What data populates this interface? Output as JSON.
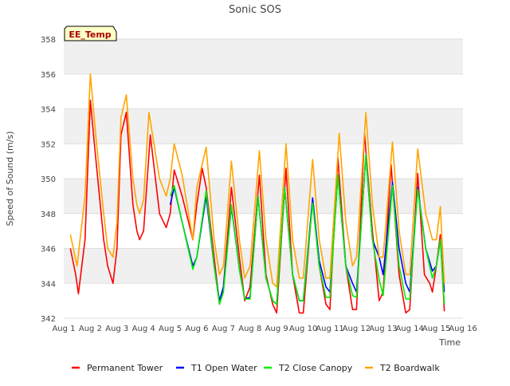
{
  "chart_data": {
    "type": "line",
    "title": "Sonic SOS",
    "xlabel": "Time",
    "ylabel": "Speed of Sound (m/s)",
    "badge": "EE_Temp",
    "xlim": [
      1,
      16
    ],
    "ylim": [
      342,
      358
    ],
    "x_ticks": [
      {
        "v": 1,
        "label": "Aug 1"
      },
      {
        "v": 2,
        "label": "Aug 2"
      },
      {
        "v": 3,
        "label": "Aug 3"
      },
      {
        "v": 4,
        "label": "Aug 4"
      },
      {
        "v": 5,
        "label": "Aug 5"
      },
      {
        "v": 6,
        "label": "Aug 6"
      },
      {
        "v": 7,
        "label": "Aug 7"
      },
      {
        "v": 8,
        "label": "Aug 8"
      },
      {
        "v": 9,
        "label": "Aug 9"
      },
      {
        "v": 10,
        "label": "Aug 10"
      },
      {
        "v": 11,
        "label": "Aug 11"
      },
      {
        "v": 12,
        "label": "Aug 12"
      },
      {
        "v": 13,
        "label": "Aug 13"
      },
      {
        "v": 14,
        "label": "Aug 14"
      },
      {
        "v": 15,
        "label": "Aug 15"
      },
      {
        "v": 16,
        "label": "Aug 16"
      }
    ],
    "y_ticks": [
      342,
      344,
      346,
      348,
      350,
      352,
      354,
      356,
      358
    ],
    "grid": true,
    "legend_position": "bottom",
    "series": [
      {
        "name": "Permanent Tower",
        "color": "#ff0000",
        "x": [
          1.25,
          1.45,
          1.55,
          1.8,
          2.0,
          2.15,
          2.5,
          2.65,
          2.85,
          3.0,
          3.15,
          3.35,
          3.6,
          3.75,
          3.85,
          4.0,
          4.25,
          4.6,
          4.85,
          5.0,
          5.15,
          5.45,
          5.85,
          6.0,
          6.2,
          6.35,
          6.65,
          6.85,
          7.0,
          7.3,
          7.6,
          7.8,
          8.0,
          8.35,
          8.6,
          8.85,
          9.0,
          9.35,
          9.6,
          9.85,
          10.0,
          10.35,
          10.6,
          10.85,
          11.0,
          11.3,
          11.6,
          11.85,
          12.0,
          12.3,
          12.6,
          12.85,
          13.0,
          13.3,
          13.6,
          13.85,
          14.0,
          14.3,
          14.55,
          14.75,
          14.85,
          15.0,
          15.15,
          15.3
        ],
        "y": [
          346,
          344.5,
          343.4,
          346.5,
          354.5,
          352,
          346.5,
          345,
          344,
          346,
          352.5,
          353.8,
          348.5,
          347,
          346.5,
          347,
          352.5,
          348,
          347.2,
          348,
          350.5,
          349,
          346.5,
          348.5,
          350.6,
          349.5,
          345.5,
          342.8,
          343.8,
          349.5,
          345.5,
          343,
          343.8,
          350.2,
          344.5,
          342.8,
          342.3,
          350.6,
          344.5,
          342.3,
          342.3,
          348.8,
          345,
          342.8,
          342.5,
          351.2,
          345,
          342.5,
          342.5,
          352.6,
          347,
          343,
          343.5,
          350.8,
          344.5,
          342.3,
          342.5,
          350.3,
          344.5,
          344,
          343.5,
          345,
          346.8,
          342.4
        ]
      },
      {
        "name": "T1 Open Water",
        "color": "#0000ff",
        "x": [
          5.0,
          5.15,
          5.45,
          5.85,
          6.0,
          6.35,
          6.65,
          6.85,
          7.0,
          7.3,
          7.6,
          7.8,
          8.0,
          8.3,
          8.6,
          8.85,
          9.0,
          9.3,
          9.6,
          9.85,
          10.0,
          10.35,
          10.6,
          10.85,
          11.0,
          11.3,
          11.6,
          11.85,
          12.0,
          12.35,
          12.6,
          12.85,
          13.0,
          13.35,
          13.6,
          13.85,
          14.0,
          14.3,
          14.6,
          14.85,
          15.0,
          15.15,
          15.3
        ],
        "y": [
          348.5,
          349.5,
          347.5,
          345,
          345.5,
          349,
          345,
          343,
          343.8,
          348.4,
          344.8,
          343.1,
          343.2,
          349,
          344.3,
          343,
          342.8,
          349.5,
          344.5,
          343,
          343,
          348.9,
          345.3,
          343.8,
          343.5,
          350.2,
          345,
          344,
          343.5,
          351.3,
          346.5,
          345.5,
          344.5,
          349.8,
          346,
          344,
          343.5,
          349.5,
          346,
          344.7,
          345,
          346.5,
          343.5
        ]
      },
      {
        "name": "T2 Close Canopy",
        "color": "#00ee00",
        "x": [
          5.0,
          5.15,
          5.45,
          5.85,
          6.0,
          6.35,
          6.65,
          6.85,
          7.0,
          7.3,
          7.6,
          7.8,
          8.0,
          8.3,
          8.6,
          8.85,
          9.0,
          9.3,
          9.6,
          9.85,
          10.0,
          10.35,
          10.6,
          10.85,
          11.0,
          11.3,
          11.6,
          11.85,
          12.0,
          12.35,
          12.6,
          12.85,
          13.0,
          13.35,
          13.6,
          13.85,
          14.0,
          14.3,
          14.6,
          14.85,
          15.0,
          15.15,
          15.3
        ],
        "y": [
          349,
          349.6,
          347.5,
          344.8,
          345.5,
          349.3,
          345,
          342.8,
          343.5,
          348.5,
          344.8,
          343.1,
          343.1,
          349,
          344.3,
          343,
          342.8,
          349.5,
          344.5,
          343,
          343,
          348.6,
          345,
          343.2,
          343.2,
          350.2,
          345,
          343.3,
          343.2,
          351.4,
          346.5,
          344.2,
          343.3,
          349.6,
          345,
          343.1,
          343.1,
          349.4,
          346,
          344.3,
          345,
          346.5,
          342.8
        ]
      },
      {
        "name": "T2 Boardwalk",
        "color": "#ffa500",
        "x": [
          1.25,
          1.5,
          1.8,
          2.0,
          2.2,
          2.5,
          2.65,
          2.85,
          3.0,
          3.15,
          3.35,
          3.6,
          3.75,
          3.85,
          4.0,
          4.2,
          4.6,
          4.85,
          5.0,
          5.15,
          5.45,
          5.85,
          6.0,
          6.35,
          6.65,
          6.85,
          7.0,
          7.3,
          7.6,
          7.8,
          8.0,
          8.35,
          8.6,
          8.85,
          9.0,
          9.35,
          9.6,
          9.85,
          10.0,
          10.35,
          10.6,
          10.85,
          11.0,
          11.35,
          11.6,
          11.85,
          12.0,
          12.35,
          12.6,
          12.85,
          13.0,
          13.35,
          13.6,
          13.85,
          14.0,
          14.3,
          14.6,
          14.85,
          15.0,
          15.15,
          15.3
        ],
        "y": [
          346.8,
          345,
          349,
          356,
          352.5,
          348,
          346,
          345.5,
          347.5,
          353.5,
          354.8,
          350,
          348.5,
          348,
          348.8,
          353.8,
          350,
          349,
          350,
          352,
          350.2,
          346.5,
          349.5,
          351.8,
          346.5,
          344.5,
          345,
          351,
          346.5,
          344.3,
          345,
          351.6,
          346.5,
          344,
          343.8,
          352,
          346.5,
          344.3,
          344.3,
          351.1,
          346.5,
          344.3,
          344.3,
          352.6,
          347.5,
          345,
          345.5,
          353.8,
          348.5,
          345.5,
          345.5,
          352.1,
          347,
          344.5,
          344.5,
          351.7,
          348,
          346.5,
          346.5,
          348.4,
          344
        ]
      }
    ]
  }
}
